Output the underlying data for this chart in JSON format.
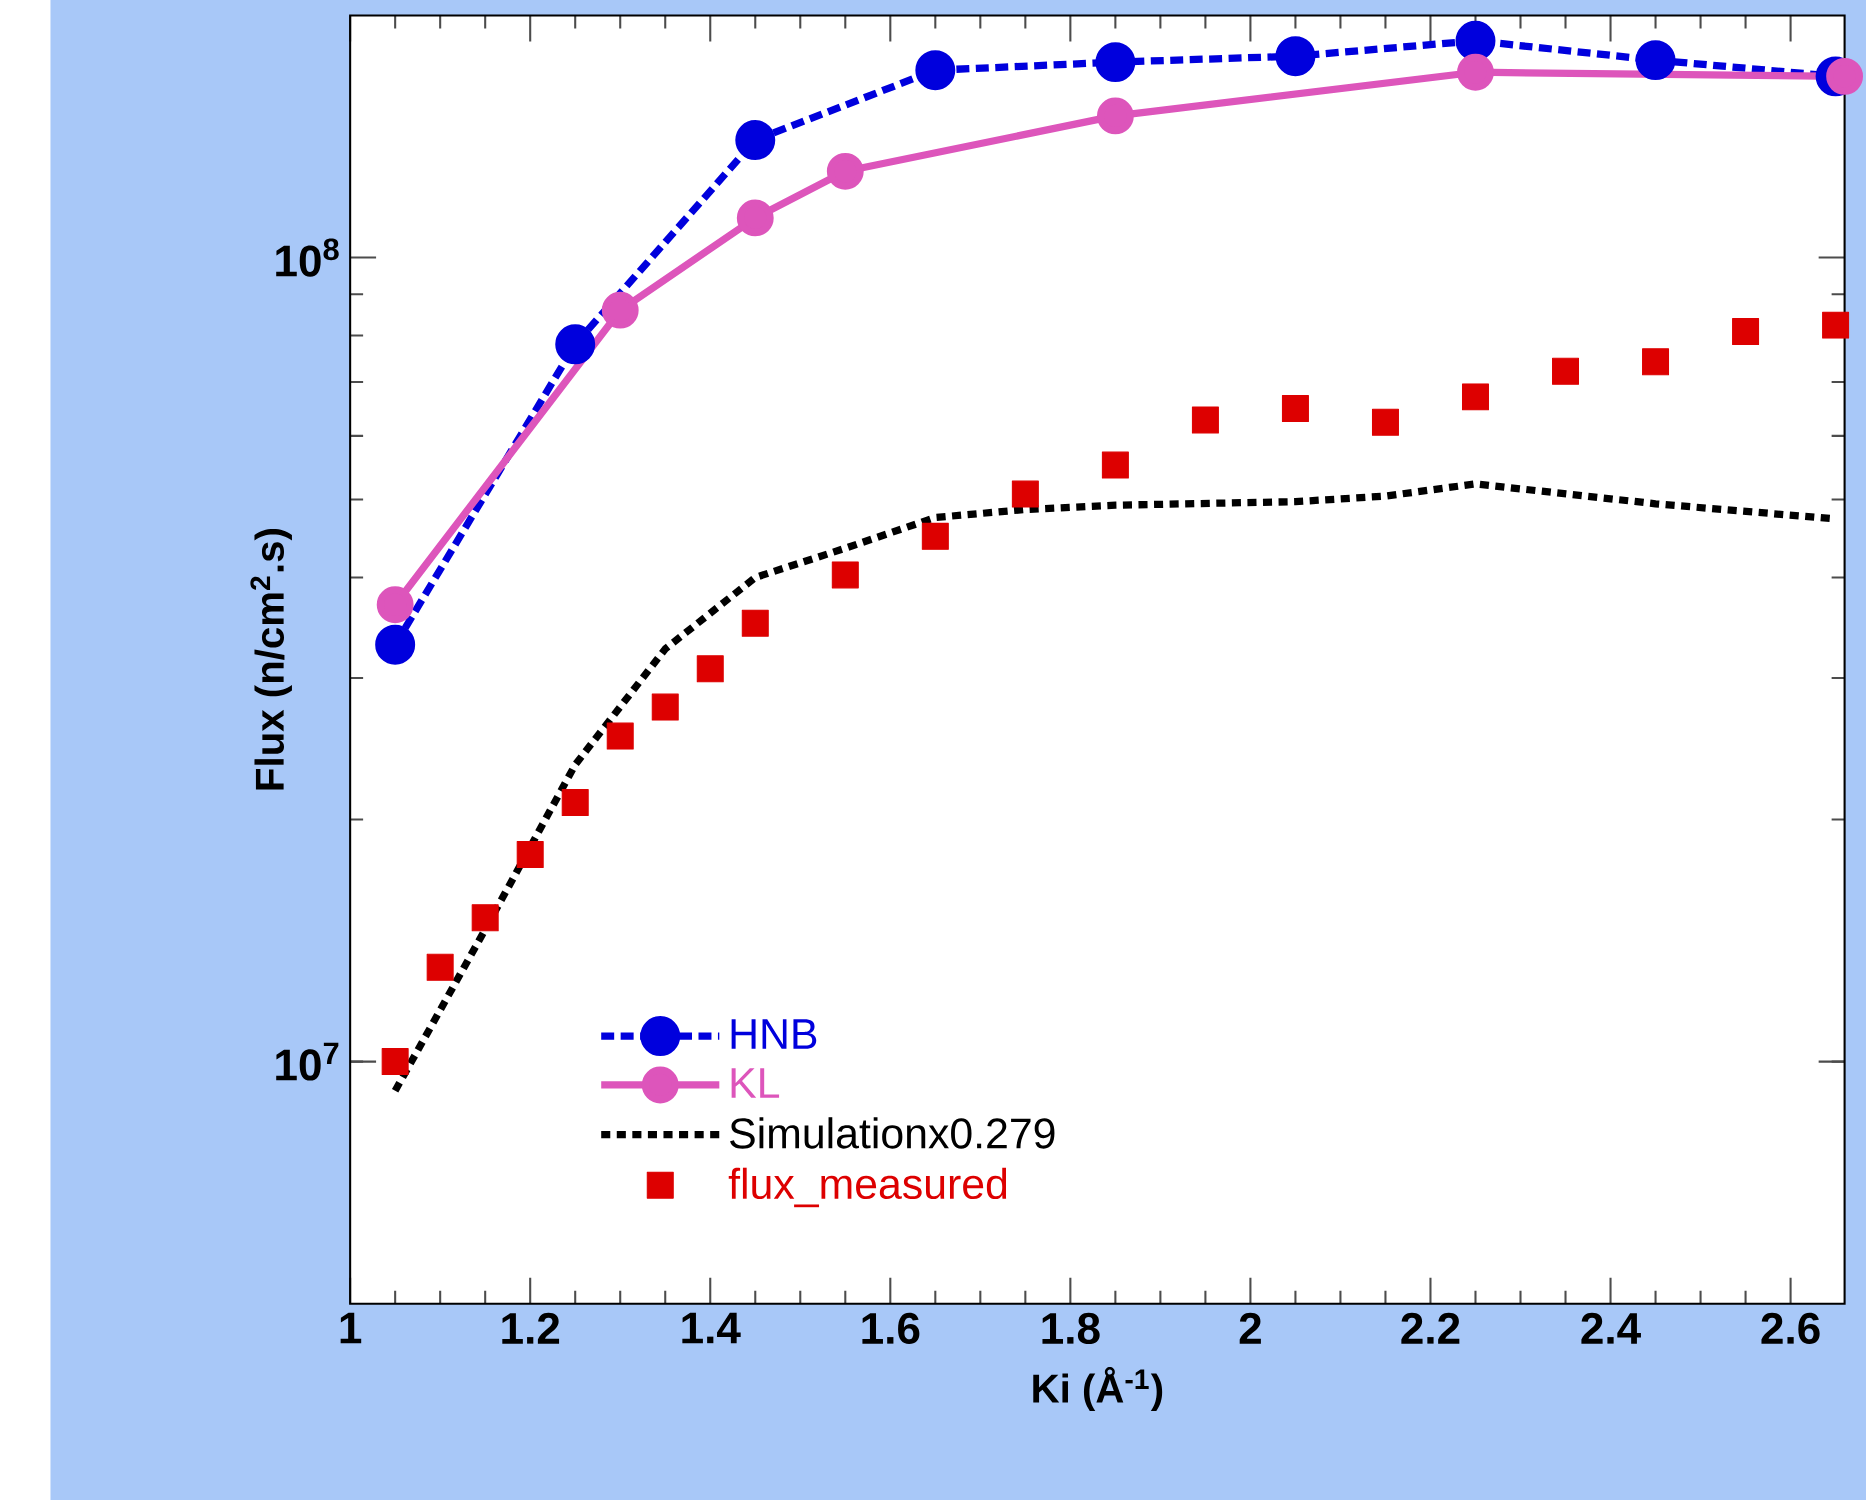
{
  "chart_data": {
    "type": "line",
    "xlabel": "Ki (Å$^{-1}$)",
    "ylabel": "Flux (n/cm$^{2}$.s)",
    "log": "y",
    "xlim": [
      1,
      2.66
    ],
    "ylim": [
      5000000,
      200000000
    ],
    "xticks": [
      1,
      1.2,
      1.4,
      1.6,
      1.8,
      2,
      2.2,
      2.4,
      2.6
    ],
    "yticks": [
      {
        "value": 10000000,
        "label": "10$^{7}$"
      },
      {
        "value": 100000000,
        "label": "10$^{8}$"
      }
    ],
    "legend": "bottom left",
    "series": [
      {
        "name": "HNB",
        "color": "#0000dd",
        "marker": "circle",
        "line_style": "dashed",
        "x": [
          1.05,
          1.25,
          1.45,
          1.65,
          1.85,
          2.05,
          2.25,
          2.45,
          2.65
        ],
        "values": [
          33000000,
          78000000,
          140000000,
          171000000,
          175000000,
          178000000,
          186000000,
          176000000,
          168000000
        ]
      },
      {
        "name": "KL",
        "color": "#dd55bb",
        "marker": "circle",
        "line_style": "solid",
        "x": [
          1.05,
          1.3,
          1.45,
          1.55,
          1.85,
          2.25,
          2.66
        ],
        "values": [
          37000000,
          86000000,
          112000000,
          128000000,
          150000000,
          170000000,
          168000000
        ]
      },
      {
        "name": "Simulationx0.279",
        "color": "#000000",
        "marker": "none",
        "line_style": "dotted",
        "x": [
          1.05,
          1.15,
          1.25,
          1.35,
          1.45,
          1.55,
          1.65,
          1.75,
          1.85,
          2.05,
          2.15,
          2.25,
          2.45,
          2.65
        ],
        "values": [
          9200000,
          14600000,
          23400000,
          32600000,
          40000000,
          43500000,
          47500000,
          48600000,
          49200000,
          49700000,
          50500000,
          52300000,
          49400000,
          47300000
        ]
      },
      {
        "name": "flux_measured",
        "type": "scatter",
        "color": "#dd0000",
        "marker": "square",
        "x": [
          1.05,
          1.1,
          1.15,
          1.2,
          1.25,
          1.3,
          1.35,
          1.4,
          1.45,
          1.55,
          1.65,
          1.75,
          1.85,
          1.95,
          2.05,
          2.15,
          2.25,
          2.35,
          2.45,
          2.55,
          2.65
        ],
        "values": [
          10000000,
          13100000,
          15100000,
          18100000,
          21000000,
          25400000,
          27600000,
          30800000,
          35100000,
          40300000,
          45000000,
          50800000,
          55200000,
          62800000,
          64900000,
          62400000,
          67100000,
          72200000,
          74200000,
          80900000,
          82400000
        ]
      }
    ]
  }
}
